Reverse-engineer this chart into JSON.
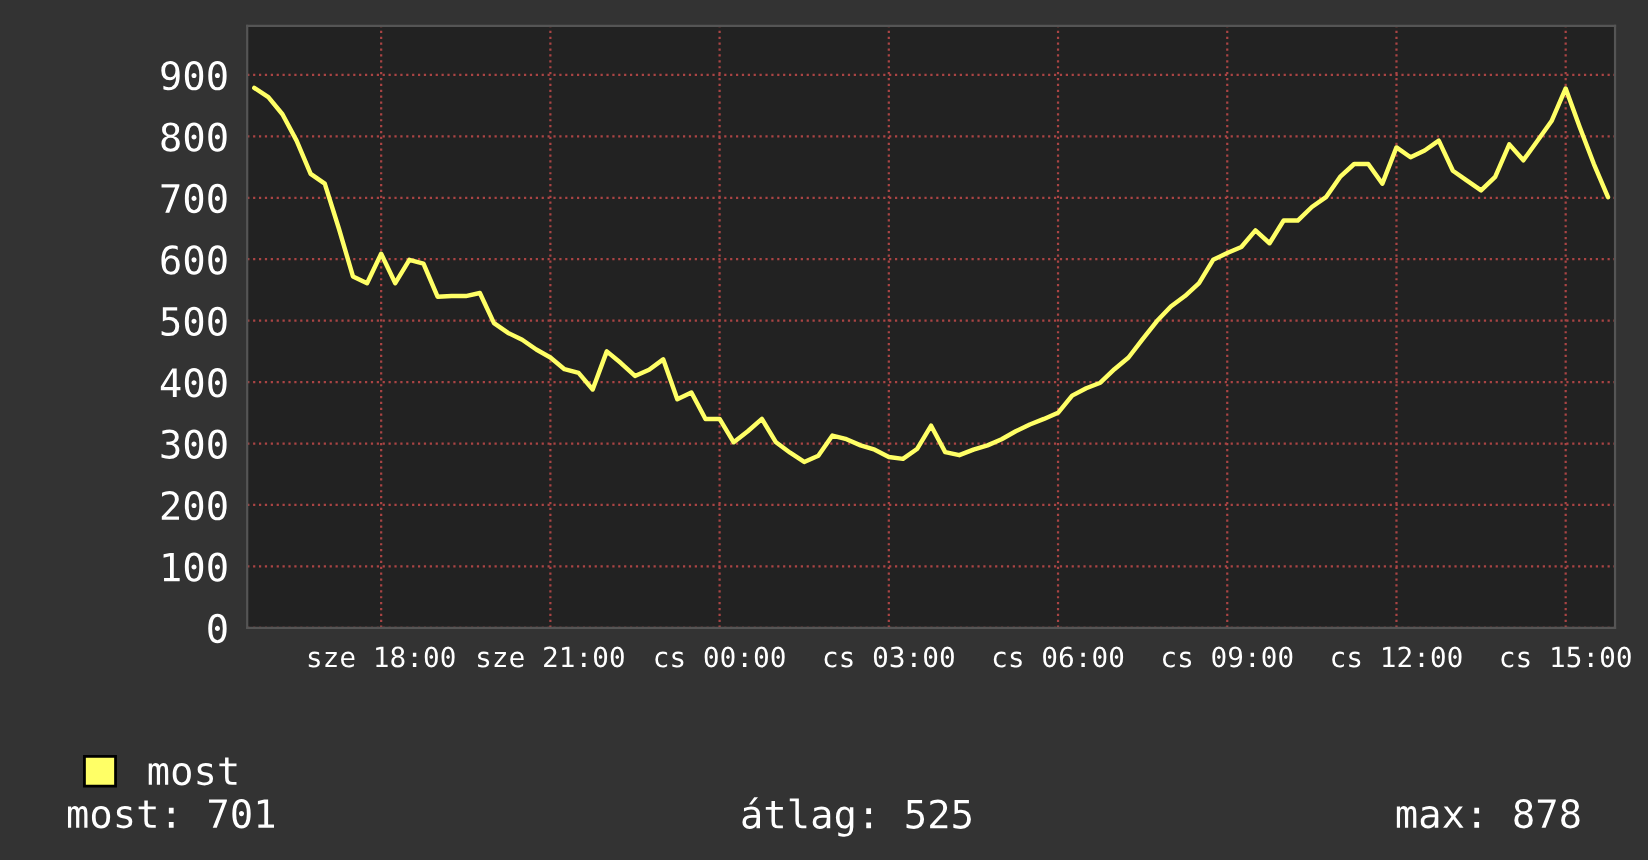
{
  "chart_data": {
    "type": "line",
    "categories": [
      null,
      null,
      null,
      null,
      null,
      null,
      null,
      null,
      null,
      "sze 18:00",
      null,
      null,
      null,
      null,
      null,
      null,
      null,
      null,
      null,
      null,
      null,
      "sze 21:00",
      null,
      null,
      null,
      null,
      null,
      null,
      null,
      null,
      null,
      null,
      null,
      "cs 00:00",
      null,
      null,
      null,
      null,
      null,
      null,
      null,
      null,
      null,
      null,
      null,
      "cs 03:00",
      null,
      null,
      null,
      null,
      null,
      null,
      null,
      null,
      null,
      null,
      null,
      "cs 06:00",
      null,
      null,
      null,
      null,
      null,
      null,
      null,
      null,
      null,
      null,
      null,
      "cs 09:00",
      null,
      null,
      null,
      null,
      null,
      null,
      null,
      null,
      null,
      null,
      null,
      "cs 12:00",
      null,
      null,
      null,
      null,
      null,
      null,
      null,
      null,
      null,
      null,
      null,
      "cs 15:00",
      null,
      null,
      null
    ],
    "series": [
      {
        "name": "most",
        "color": "#ffff66",
        "values": [
          879,
          864,
          836,
          793,
          739,
          723,
          650,
          572,
          561,
          609,
          561,
          599,
          593,
          539,
          540,
          540,
          545,
          496,
          480,
          469,
          453,
          440,
          421,
          415,
          388,
          450,
          431,
          410,
          420,
          437,
          372,
          383,
          340,
          340,
          302,
          320,
          340,
          302,
          285,
          270,
          280,
          313,
          307,
          297,
          290,
          278,
          275,
          291,
          329,
          286,
          281,
          290,
          297,
          307,
          320,
          331,
          340,
          350,
          378,
          390,
          399,
          421,
          440,
          470,
          499,
          523,
          540,
          561,
          599,
          610,
          620,
          647,
          626,
          663,
          663,
          685,
          701,
          734,
          755,
          755,
          723,
          782,
          766,
          777,
          793,
          744,
          728,
          712,
          734,
          787,
          761,
          793,
          825,
          878,
          815,
          755,
          701
        ]
      }
    ],
    "ylim": [
      0,
      980
    ],
    "yticks": [
      0,
      100,
      200,
      300,
      400,
      500,
      600,
      700,
      800,
      900
    ],
    "grid": true,
    "legend": "bottom",
    "marker": "none",
    "line_style": "solid",
    "annotations": [
      "most: 701",
      "átlag: 525",
      "max: 878"
    ]
  }
}
